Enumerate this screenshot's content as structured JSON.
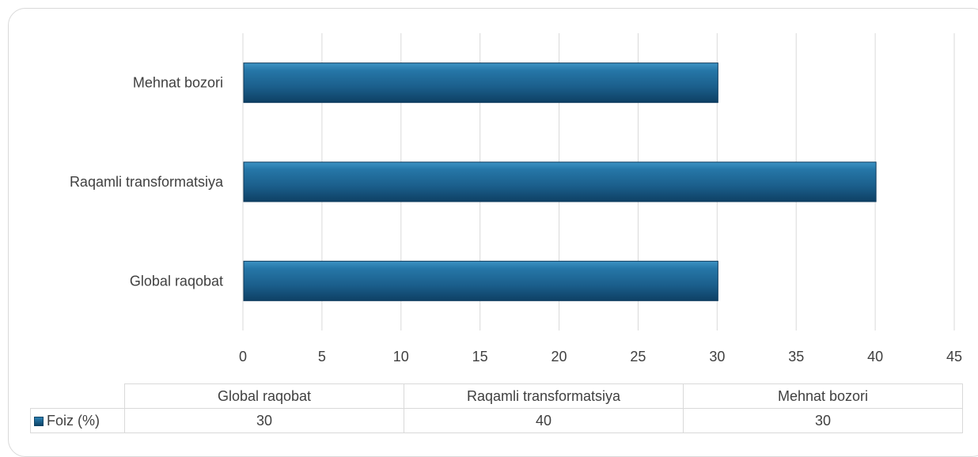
{
  "chart_data": {
    "type": "bar",
    "orientation": "horizontal",
    "categories": [
      "Global raqobat",
      "Raqamli transformatsiya",
      "Mehnat bozori"
    ],
    "series": [
      {
        "name": "Foiz (%)",
        "values": [
          30,
          40,
          30
        ],
        "color": "#1f6a9a"
      }
    ],
    "xlim": [
      0,
      45
    ],
    "xticks": [
      0,
      5,
      10,
      15,
      20,
      25,
      30,
      35,
      40,
      45
    ],
    "xtick_labels": [
      "0",
      "5",
      "10",
      "15",
      "20",
      "25",
      "30",
      "35",
      "40",
      "45"
    ],
    "grid": "vertical",
    "legend": "data-table",
    "table": {
      "header": [
        "Global raqobat",
        "Raqamli transformatsiya",
        "Mehnat bozori"
      ],
      "row_label": "Foiz (%)",
      "row_values": [
        "30",
        "40",
        "30"
      ]
    }
  }
}
